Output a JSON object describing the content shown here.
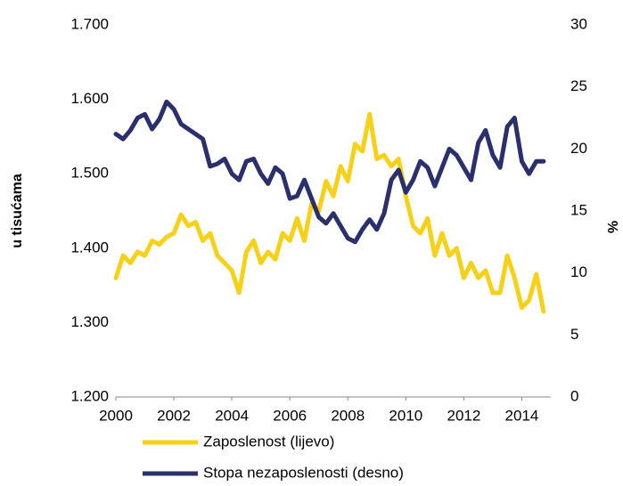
{
  "chart_data": {
    "type": "line",
    "y_label": "u tisućama",
    "y2_label": "%",
    "x": [
      2000,
      2000.25,
      2000.5,
      2000.75,
      2001,
      2001.25,
      2001.5,
      2001.75,
      2002,
      2002.25,
      2002.5,
      2002.75,
      2003,
      2003.25,
      2003.5,
      2003.75,
      2004,
      2004.25,
      2004.5,
      2004.75,
      2005,
      2005.25,
      2005.5,
      2005.75,
      2006,
      2006.25,
      2006.5,
      2006.75,
      2007,
      2007.25,
      2007.5,
      2007.75,
      2008,
      2008.25,
      2008.5,
      2008.75,
      2009,
      2009.25,
      2009.5,
      2009.75,
      2010,
      2010.25,
      2010.5,
      2010.75,
      2011,
      2011.25,
      2011.5,
      2011.75,
      2012,
      2012.25,
      2012.5,
      2012.75,
      2013,
      2013.25,
      2013.5,
      2013.75,
      2014,
      2014.25,
      2014.5,
      2014.75
    ],
    "series": [
      {
        "name": "Zaposlenost (lijevo)",
        "color": "#f7d117",
        "axis": "y",
        "values": [
          1360,
          1390,
          1380,
          1395,
          1390,
          1410,
          1405,
          1415,
          1420,
          1445,
          1430,
          1435,
          1410,
          1420,
          1390,
          1380,
          1370,
          1340,
          1395,
          1410,
          1380,
          1395,
          1385,
          1420,
          1410,
          1440,
          1410,
          1460,
          1450,
          1490,
          1470,
          1510,
          1490,
          1540,
          1530,
          1580,
          1520,
          1525,
          1510,
          1520,
          1470,
          1430,
          1420,
          1440,
          1390,
          1420,
          1390,
          1400,
          1360,
          1380,
          1360,
          1370,
          1340,
          1340,
          1390,
          1360,
          1320,
          1330,
          1365,
          1315
        ]
      },
      {
        "name": "Stopa nezaposlenosti (desno)",
        "color": "#2b2f6b",
        "axis": "y2",
        "values": [
          21.2,
          20.8,
          21.5,
          22.5,
          22.8,
          21.6,
          22.4,
          23.8,
          23.2,
          22.0,
          21.6,
          21.2,
          20.8,
          18.6,
          18.8,
          19.2,
          18.0,
          17.5,
          19.0,
          19.2,
          18.0,
          17.2,
          18.5,
          18.0,
          16.0,
          16.2,
          17.5,
          16.0,
          14.5,
          14.0,
          14.8,
          13.8,
          12.8,
          12.5,
          13.5,
          14.3,
          13.5,
          14.8,
          17.5,
          18.3,
          16.5,
          17.5,
          19.0,
          18.5,
          17.0,
          18.5,
          20.0,
          19.5,
          18.5,
          17.5,
          20.5,
          21.5,
          19.5,
          18.5,
          21.8,
          22.5,
          19.0,
          18.0,
          19.0,
          19.0
        ]
      }
    ],
    "xlim": [
      2000,
      2015
    ],
    "xticks": [
      2000,
      2002,
      2004,
      2006,
      2008,
      2010,
      2012,
      2014
    ],
    "ylim": [
      1200,
      1700
    ],
    "yticks": [
      {
        "value": 1200,
        "label": "1.200"
      },
      {
        "value": 1300,
        "label": "1.300"
      },
      {
        "value": 1400,
        "label": "1.400"
      },
      {
        "value": 1500,
        "label": "1.500"
      },
      {
        "value": 1600,
        "label": "1.600"
      },
      {
        "value": 1700,
        "label": "1.700"
      }
    ],
    "y2lim": [
      0,
      30
    ],
    "y2ticks": [
      0,
      5,
      10,
      15,
      20,
      25,
      30
    ],
    "grid": false
  }
}
